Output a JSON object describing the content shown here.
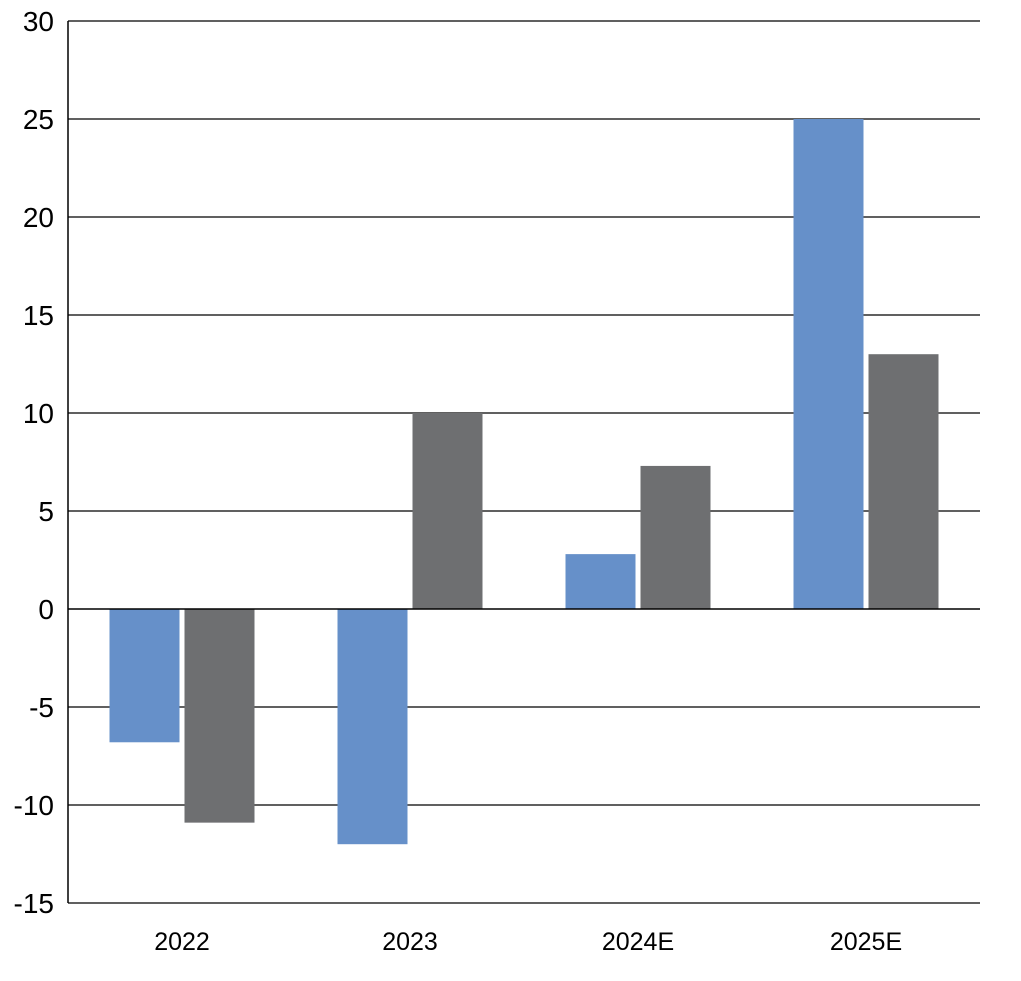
{
  "chart_data": {
    "type": "bar",
    "categories": [
      "2022",
      "2023",
      "2024E",
      "2025E"
    ],
    "series": [
      {
        "values": [
          -6.8,
          -12.0,
          2.8,
          25.0
        ],
        "color": "#6690c9"
      },
      {
        "values": [
          -10.9,
          10.0,
          7.3,
          13.0
        ],
        "color": "#6e6f71"
      }
    ],
    "ylim": [
      -15,
      30
    ],
    "yticks": [
      30,
      25,
      20,
      15,
      10,
      5,
      0,
      -5,
      -10,
      -15
    ],
    "grid": true,
    "legend": "none"
  }
}
